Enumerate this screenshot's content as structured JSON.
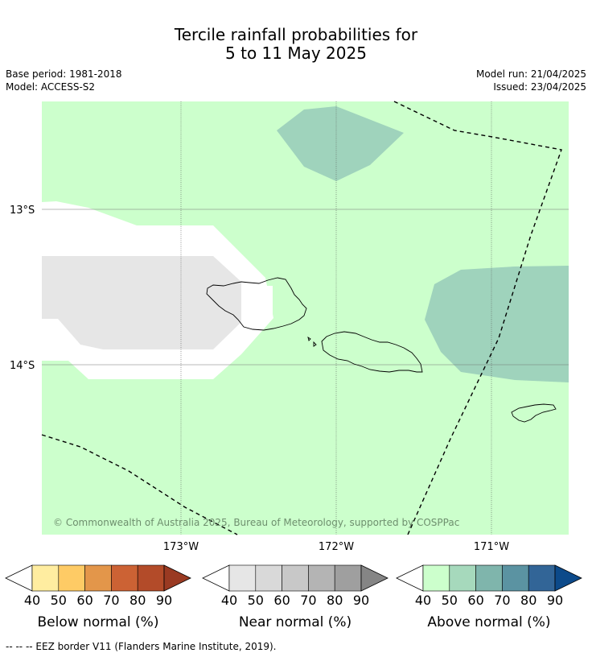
{
  "title_line1": "Tercile rainfall probabilities for",
  "title_line2": "5 to 11 May 2025",
  "base_period": "Base period: 1981-2018",
  "model": "Model: ACCESS-S2",
  "model_run": "Model run: 21/04/2025",
  "issued": "Issued: 23/04/2025",
  "map": {
    "lat_labels": [
      "13°S",
      "14°S"
    ],
    "lon_labels": [
      "173°W",
      "172°W",
      "171°W"
    ],
    "copyright": "© Commonwealth of Australia 2025, Bureau of Meteorology, supported by COSPPac",
    "colors": {
      "above_40_50": "#ccffcc",
      "above_50_60": "#9fd3bc",
      "near_40_50": "#e6e6e6",
      "background": "#ffffff"
    }
  },
  "colorbars": [
    {
      "name": "Below normal (%)",
      "ticks": [
        "40",
        "50",
        "60",
        "70",
        "80",
        "90"
      ],
      "colors": [
        "#ffeda0",
        "#fecb65",
        "#e3964a",
        "#cc6234",
        "#b34b29",
        "#9a3a22"
      ]
    },
    {
      "name": "Near normal (%)",
      "ticks": [
        "40",
        "50",
        "60",
        "70",
        "80",
        "90"
      ],
      "colors": [
        "#e6e6e6",
        "#d9d9d9",
        "#c8c8c8",
        "#b4b4b4",
        "#9f9f9f",
        "#858585"
      ]
    },
    {
      "name": "Above normal (%)",
      "ticks": [
        "40",
        "50",
        "60",
        "70",
        "80",
        "90"
      ],
      "colors": [
        "#ccffcc",
        "#a6d9bc",
        "#7fb5ac",
        "#5b93a2",
        "#326597",
        "#0c4a8a"
      ]
    }
  ],
  "footer": "--  --  -- EEZ border V11 (Flanders Marine Institute, 2019)."
}
